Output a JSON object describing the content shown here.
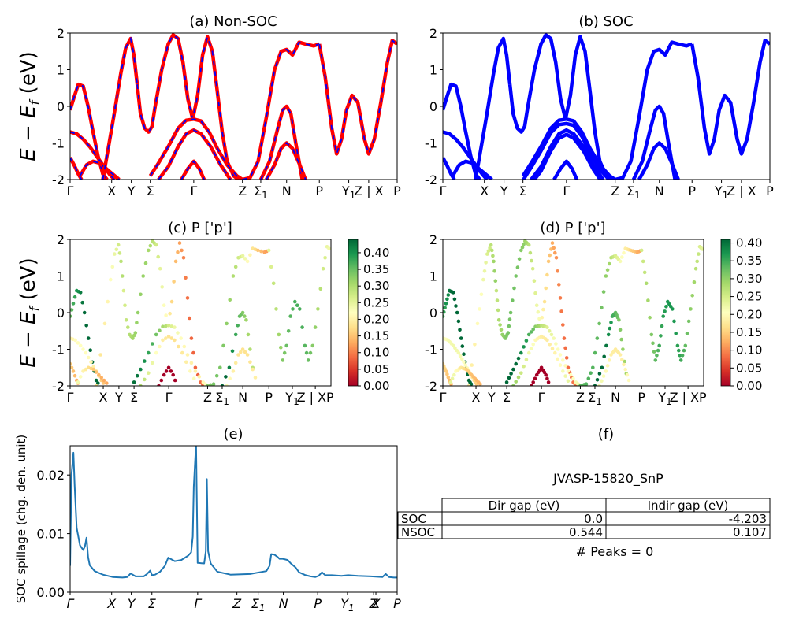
{
  "figure": {
    "ylabel_bands": "E − E",
    "ylabel_bands_sub": "f",
    "ylabel_bands_unit": " (eV)",
    "ylabel_spillage": "SOC spillage (chg. den. unit)"
  },
  "colors": {
    "nonsoc_band": "#ff0000",
    "nonsoc_overlay": "#0000ff",
    "soc_band": "#0000ff",
    "spillage_line": "#1f77b4"
  },
  "chart_data": [
    {
      "panel": "a",
      "type": "line",
      "title": "(a) Non-SOC",
      "ylim": [
        -2,
        2
      ],
      "yticks": [
        -2,
        -1,
        0,
        1,
        2
      ],
      "xlim": [
        0,
        1
      ],
      "xticks": [
        {
          "label": "Γ",
          "x": 0.0
        },
        {
          "label": "X",
          "x": 0.127
        },
        {
          "label": "Y",
          "x": 0.187
        },
        {
          "label": "Σ",
          "x": 0.245
        },
        {
          "label": "Γ",
          "x": 0.378
        },
        {
          "label": "Z",
          "x": 0.527
        },
        {
          "label": "Σ",
          "sub": "1",
          "x": 0.583
        },
        {
          "label": "N",
          "x": 0.662
        },
        {
          "label": "P",
          "x": 0.762
        },
        {
          "label": "Y",
          "sub": "1",
          "x": 0.852
        },
        {
          "label": "Z | X",
          "x": 0.913
        },
        {
          "label": "P",
          "x": 1.0
        }
      ],
      "series": [
        {
          "x": [
            0.0,
            0.012,
            0.025,
            0.04,
            0.055,
            0.07,
            0.085,
            0.1,
            0.113
          ],
          "y": [
            -0.1,
            0.25,
            0.6,
            0.55,
            0.0,
            -0.7,
            -1.35,
            -1.85,
            -2.0
          ]
        },
        {
          "x": [
            0.0,
            0.02,
            0.04,
            0.06,
            0.08,
            0.1,
            0.12,
            0.135
          ],
          "y": [
            -0.7,
            -0.75,
            -0.9,
            -1.1,
            -1.35,
            -1.6,
            -1.85,
            -2.0
          ]
        },
        {
          "x": [
            0.0,
            0.012,
            0.025,
            0.035
          ],
          "y": [
            -1.4,
            -1.6,
            -1.85,
            -2.0
          ]
        },
        {
          "x": [
            0.03,
            0.05,
            0.07,
            0.09,
            0.11,
            0.13,
            0.15
          ],
          "y": [
            -1.9,
            -1.6,
            -1.5,
            -1.55,
            -1.7,
            -1.85,
            -2.0
          ]
        },
        {
          "x": [
            0.1,
            0.133,
            0.155,
            0.17,
            0.185,
            0.195,
            0.205
          ],
          "y": [
            -2.0,
            -0.3,
            0.9,
            1.6,
            1.85,
            1.4,
            0.6
          ]
        },
        {
          "x": [
            0.205,
            0.215,
            0.228,
            0.24,
            0.25,
            0.26,
            0.28,
            0.3,
            0.315,
            0.33,
            0.345,
            0.36,
            0.375,
            0.39,
            0.405,
            0.42,
            0.435,
            0.45,
            0.465,
            0.48,
            0.5,
            0.515,
            0.527
          ],
          "y": [
            0.6,
            -0.2,
            -0.6,
            -0.7,
            -0.55,
            0.0,
            1.0,
            1.7,
            1.95,
            1.85,
            1.2,
            0.2,
            -0.35,
            0.3,
            1.4,
            1.9,
            1.5,
            0.4,
            -0.7,
            -1.5,
            -1.9,
            -2.0,
            -2.0
          ]
        },
        {
          "x": [
            0.245,
            0.27,
            0.3,
            0.33,
            0.355,
            0.378,
            0.4,
            0.425,
            0.45,
            0.48,
            0.51,
            0.527
          ],
          "y": [
            -1.9,
            -1.55,
            -1.1,
            -0.6,
            -0.38,
            -0.35,
            -0.4,
            -0.7,
            -1.15,
            -1.6,
            -1.9,
            -2.0
          ]
        },
        {
          "x": [
            0.27,
            0.3,
            0.33,
            0.355,
            0.378,
            0.4,
            0.43,
            0.46,
            0.49
          ],
          "y": [
            -2.0,
            -1.65,
            -1.1,
            -0.75,
            -0.65,
            -0.75,
            -1.1,
            -1.6,
            -2.0
          ]
        },
        {
          "x": [
            0.34,
            0.36,
            0.378,
            0.395,
            0.41
          ],
          "y": [
            -2.0,
            -1.7,
            -1.5,
            -1.7,
            -2.0
          ]
        },
        {
          "x": [
            0.527,
            0.55,
            0.575,
            0.6,
            0.625,
            0.645,
            0.662,
            0.68,
            0.7,
            0.72,
            0.745,
            0.762
          ],
          "y": [
            -2.0,
            -1.95,
            -1.5,
            -0.3,
            1.0,
            1.5,
            1.55,
            1.4,
            1.75,
            1.7,
            1.65,
            1.7
          ]
        },
        {
          "x": [
            0.583,
            0.61,
            0.635,
            0.65,
            0.662,
            0.675,
            0.69,
            0.71
          ],
          "y": [
            -2.0,
            -1.5,
            -0.6,
            -0.1,
            0.0,
            -0.2,
            -1.0,
            -2.0
          ]
        },
        {
          "x": [
            0.6,
            0.625,
            0.645,
            0.662,
            0.68,
            0.7,
            0.72
          ],
          "y": [
            -2.0,
            -1.6,
            -1.15,
            -1.0,
            -1.15,
            -1.55,
            -2.0
          ]
        },
        {
          "x": [
            0.762,
            0.78,
            0.8,
            0.815,
            0.83,
            0.845,
            0.862,
            0.88,
            0.9,
            0.913,
            0.93,
            0.95,
            0.97,
            0.985,
            1.0
          ],
          "y": [
            1.7,
            0.8,
            -0.6,
            -1.3,
            -0.9,
            -0.1,
            0.3,
            0.1,
            -0.9,
            -1.3,
            -0.9,
            0.1,
            1.2,
            1.8,
            1.7
          ]
        }
      ]
    },
    {
      "panel": "b",
      "type": "line",
      "title": "(b) SOC",
      "ylim": [
        -2,
        2
      ],
      "yticks": [
        -2,
        -1,
        0,
        1,
        2
      ],
      "xlim": [
        0,
        1
      ],
      "xticks": [
        {
          "label": "Γ",
          "x": 0.0
        },
        {
          "label": "X",
          "x": 0.127
        },
        {
          "label": "Y",
          "x": 0.187
        },
        {
          "label": "Σ",
          "x": 0.245
        },
        {
          "label": "Γ",
          "x": 0.378
        },
        {
          "label": "Z",
          "x": 0.527
        },
        {
          "label": "Σ",
          "sub": "1",
          "x": 0.583
        },
        {
          "label": "N",
          "x": 0.662
        },
        {
          "label": "P",
          "x": 0.762
        },
        {
          "label": "Y",
          "sub": "1",
          "x": 0.852
        },
        {
          "label": "Z | X",
          "x": 0.913
        },
        {
          "label": "P",
          "x": 1.0
        }
      ]
    },
    {
      "panel": "c",
      "type": "scatter",
      "title": "(c)  P ['p']",
      "ylim": [
        -2,
        2
      ],
      "yticks": [
        -2,
        -1,
        0,
        1,
        2
      ],
      "xlim": [
        0,
        1
      ],
      "xticks": [
        {
          "label": "Γ",
          "x": 0.0
        },
        {
          "label": "X",
          "x": 0.127
        },
        {
          "label": "Y",
          "x": 0.187
        },
        {
          "label": "Σ",
          "x": 0.245
        },
        {
          "label": "Γ",
          "x": 0.378
        },
        {
          "label": "Z",
          "x": 0.527
        },
        {
          "label": "Σ",
          "sub": "1",
          "x": 0.583
        },
        {
          "label": "N",
          "x": 0.662
        },
        {
          "label": "P",
          "x": 0.762
        },
        {
          "label": "Y",
          "sub": "1",
          "x": 0.852
        },
        {
          "label": "Z | XP",
          "x": 0.94
        }
      ],
      "colorbar": {
        "min": 0.0,
        "max": 0.44,
        "ticks": [
          "0.00",
          "0.05",
          "0.10",
          "0.15",
          "0.20",
          "0.25",
          "0.30",
          "0.35",
          "0.40"
        ]
      }
    },
    {
      "panel": "d",
      "type": "scatter",
      "title": "(d) P ['p']",
      "ylim": [
        -2,
        2
      ],
      "yticks": [
        -2,
        -1,
        0,
        1,
        2
      ],
      "xlim": [
        0,
        1
      ],
      "xticks": [
        {
          "label": "Γ",
          "x": 0.0
        },
        {
          "label": "X",
          "x": 0.127
        },
        {
          "label": "Y",
          "x": 0.187
        },
        {
          "label": "Σ",
          "x": 0.245
        },
        {
          "label": "Γ",
          "x": 0.378
        },
        {
          "label": "Z",
          "x": 0.527
        },
        {
          "label": "Σ",
          "sub": "1",
          "x": 0.583
        },
        {
          "label": "N",
          "x": 0.662
        },
        {
          "label": "P",
          "x": 0.762
        },
        {
          "label": "Y",
          "sub": "1",
          "x": 0.852
        },
        {
          "label": "Z | XP",
          "x": 0.94
        }
      ],
      "colorbar": {
        "min": 0.0,
        "max": 0.41,
        "ticks": [
          "0.00",
          "0.05",
          "0.10",
          "0.15",
          "0.20",
          "0.25",
          "0.30",
          "0.35",
          "0.40"
        ]
      }
    },
    {
      "panel": "e",
      "type": "line",
      "title": "(e)",
      "ylabel": "SOC spillage (chg. den. unit)",
      "ylim": [
        0,
        0.025
      ],
      "yticks": [
        "0.00",
        "0.01",
        "0.02"
      ],
      "ytick_values": [
        0,
        0.01,
        0.02
      ],
      "xlim": [
        0,
        1
      ],
      "xticks": [
        {
          "label": "Γ",
          "x": 0.0
        },
        {
          "label": "X",
          "x": 0.127
        },
        {
          "label": "Y",
          "x": 0.187
        },
        {
          "label": "Σ",
          "x": 0.25
        },
        {
          "label": "Γ",
          "x": 0.39
        },
        {
          "label": "Z",
          "x": 0.51
        },
        {
          "label": "Σ",
          "sub": "1",
          "x": 0.575
        },
        {
          "label": "N",
          "x": 0.652
        },
        {
          "label": "P",
          "x": 0.757
        },
        {
          "label": "Y",
          "sub": "1",
          "x": 0.848
        },
        {
          "label": "Z",
          "x": 0.928
        },
        {
          "label": "X",
          "x": 0.935
        },
        {
          "label": "P",
          "x": 1.0
        }
      ],
      "x": [
        0.0,
        0.004,
        0.01,
        0.014,
        0.02,
        0.03,
        0.04,
        0.045,
        0.05,
        0.055,
        0.06,
        0.075,
        0.1,
        0.13,
        0.16,
        0.175,
        0.185,
        0.2,
        0.225,
        0.235,
        0.245,
        0.25,
        0.26,
        0.275,
        0.29,
        0.3,
        0.32,
        0.34,
        0.36,
        0.37,
        0.375,
        0.378,
        0.385,
        0.39,
        0.41,
        0.415,
        0.418,
        0.422,
        0.43,
        0.45,
        0.49,
        0.55,
        0.6,
        0.61,
        0.615,
        0.625,
        0.635,
        0.64,
        0.65,
        0.665,
        0.675,
        0.69,
        0.7,
        0.72,
        0.735,
        0.75,
        0.76,
        0.77,
        0.78,
        0.8,
        0.83,
        0.85,
        0.88,
        0.92,
        0.955,
        0.965,
        0.975,
        0.99,
        1.0
      ],
      "y": [
        0.0045,
        0.02,
        0.0238,
        0.018,
        0.011,
        0.008,
        0.0072,
        0.0078,
        0.0093,
        0.006,
        0.0046,
        0.0036,
        0.003,
        0.0026,
        0.0025,
        0.0026,
        0.0032,
        0.0027,
        0.0027,
        0.0031,
        0.0037,
        0.0029,
        0.003,
        0.0035,
        0.0045,
        0.0059,
        0.0053,
        0.0055,
        0.0062,
        0.0068,
        0.0095,
        0.018,
        0.0255,
        0.005,
        0.0049,
        0.007,
        0.0193,
        0.007,
        0.0049,
        0.0035,
        0.003,
        0.0031,
        0.0036,
        0.0045,
        0.0065,
        0.0064,
        0.006,
        0.0057,
        0.0057,
        0.0055,
        0.0049,
        0.0042,
        0.0034,
        0.0029,
        0.0027,
        0.0026,
        0.0028,
        0.0034,
        0.0029,
        0.0029,
        0.0028,
        0.0029,
        0.0028,
        0.0027,
        0.0026,
        0.0031,
        0.0026,
        0.0025,
        0.0025
      ]
    },
    {
      "panel": "f",
      "type": "table",
      "title": "(f)",
      "subtitle": "JVASP-15820_SnP",
      "columns": [
        "Dir gap (eV)",
        "Indir gap (eV)"
      ],
      "rows": [
        {
          "label": "SOC",
          "values": [
            "0.0",
            "-4.203"
          ]
        },
        {
          "label": "NSOC",
          "values": [
            "0.544",
            "0.107"
          ]
        }
      ],
      "footer": "# Peaks = 0"
    }
  ]
}
